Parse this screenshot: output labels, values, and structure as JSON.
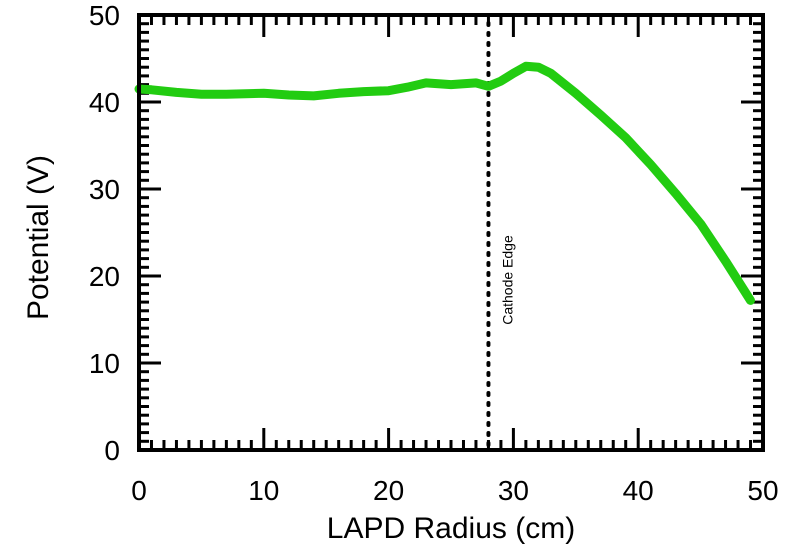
{
  "chart_data": {
    "type": "line",
    "title": "",
    "xlabel": "LAPD Radius (cm)",
    "ylabel": "Potential (V)",
    "xlim": [
      0,
      50
    ],
    "ylim": [
      0,
      50
    ],
    "x_ticks": [
      "0",
      "10",
      "20",
      "30",
      "40",
      "50"
    ],
    "y_ticks": [
      "0",
      "10",
      "20",
      "30",
      "40",
      "50"
    ],
    "grid": false,
    "legend": "none",
    "series_color": "#22cc11",
    "series": [
      {
        "x": [
          0,
          1,
          3,
          5,
          7,
          10,
          12,
          14,
          16,
          18,
          20,
          21.5,
          23,
          25,
          27,
          28,
          29,
          30,
          31,
          32,
          33,
          35,
          37,
          39,
          41,
          43,
          45,
          47,
          49
        ],
        "y": [
          41.5,
          41.4,
          41.1,
          40.9,
          40.9,
          41.0,
          40.8,
          40.7,
          41.0,
          41.2,
          41.3,
          41.7,
          42.2,
          42.0,
          42.2,
          41.8,
          42.4,
          43.3,
          44.1,
          44.0,
          43.3,
          41.0,
          38.5,
          35.9,
          32.8,
          29.5,
          26.0,
          21.7,
          17.2
        ]
      }
    ],
    "annotations": [
      {
        "text": "Cathode Edge",
        "x": 28,
        "style": "dotted-vertical-line"
      }
    ]
  }
}
